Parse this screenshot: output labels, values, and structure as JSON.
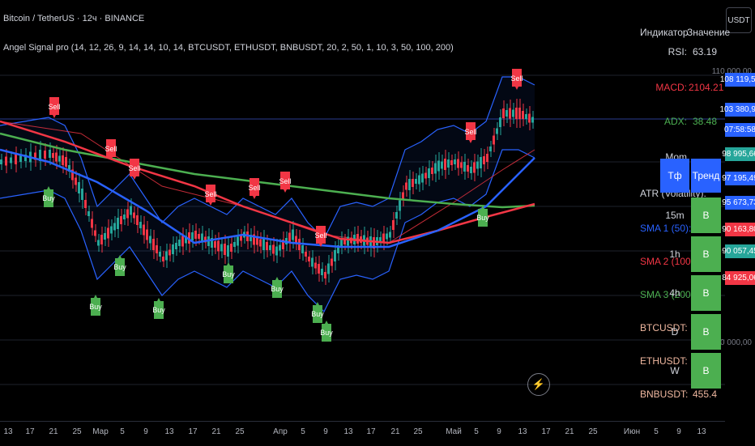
{
  "header": {
    "title": "Bitcoin / TetherUS · 12ч · BINANCE",
    "indicator": "Angel Signal pro (14, 12, 26, 9, 14, 14, 10, 14, BTCUSDT, ETHUSDT, BNBUSDT, 20, 2, 50, 1, 10, 3, 50, 100, 200)"
  },
  "currency_button": "USDT",
  "price_axis": {
    "labels": [
      "110 000,00",
      "70 000,00"
    ],
    "tags": [
      {
        "text": "108 119,52",
        "color": "#2962ff"
      },
      {
        "text": "103 380,95",
        "color": "#2962ff"
      },
      {
        "text": "07:58:58",
        "color": "#2962ff"
      },
      {
        "text": "98 995,66",
        "color": "#26a69a"
      },
      {
        "text": "97 195,49",
        "color": "#2962ff"
      },
      {
        "text": "95 673,73",
        "color": "#2962ff"
      },
      {
        "text": "90 163,80",
        "color": "#f23645"
      },
      {
        "text": "90 057,45",
        "color": "#26a69a"
      },
      {
        "text": "84 925,06",
        "color": "#f23645"
      }
    ]
  },
  "indicator_table": {
    "header_key": "Индикатор",
    "header_value": "Значение",
    "rows": [
      {
        "k": "RSI:",
        "v": "63.19",
        "color": "#d1d4dc"
      },
      {
        "k": "MACD:",
        "v": "2104.21",
        "color": "#f23645"
      },
      {
        "k": "ADX:",
        "v": "38.48",
        "color": "#4caf50"
      },
      {
        "k": "Mom",
        "v": "",
        "color": "#d1d4dc"
      },
      {
        "k": "ATR (Volatility):",
        "v": "",
        "color": "#d1d4dc"
      },
      {
        "k": "SMA 1 (50):",
        "v": "",
        "color": "#2962ff"
      },
      {
        "k": "SMA 2 (100):",
        "v": "",
        "color": "#f23645"
      },
      {
        "k": "SMA 3 (200):",
        "v": "",
        "color": "#4caf50"
      },
      {
        "k": "BTCUSDT:",
        "v": "",
        "color": "#f0b8a0"
      },
      {
        "k": "ETHUSDT:",
        "v": "",
        "color": "#f0b8a0"
      },
      {
        "k": "BNBUSDT:",
        "v": "455.4",
        "color": "#f0b8a0"
      }
    ]
  },
  "trend_table": {
    "h_tf": "Тф",
    "h_trend": "Тренд",
    "rows": [
      {
        "tf": "15m",
        "t": "B"
      },
      {
        "tf": "1h",
        "t": "B"
      },
      {
        "tf": "4h",
        "t": "B"
      },
      {
        "tf": "D",
        "t": "B"
      },
      {
        "tf": "W",
        "t": "B"
      }
    ]
  },
  "time_axis": [
    "13",
    "17",
    "21",
    "25",
    "Мар",
    "5",
    "9",
    "13",
    "17",
    "21",
    "25",
    "Апр",
    "5",
    "9",
    "13",
    "17",
    "21",
    "25",
    "Май",
    "5",
    "9",
    "13",
    "17",
    "21",
    "25",
    "Июн",
    "5",
    "9",
    "13"
  ],
  "signals": {
    "sell": "Sell",
    "buy": "Buy"
  },
  "colors": {
    "buy": "#4caf50",
    "sell": "#f23645",
    "sma50": "#2962ff",
    "sma100": "#f23645",
    "sma200": "#4caf50",
    "bands": "#2962ff"
  }
}
